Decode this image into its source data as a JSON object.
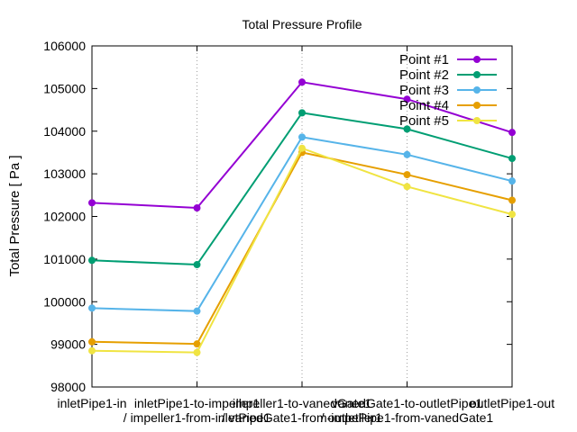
{
  "chart_data": {
    "type": "line",
    "title": "Total Pressure Profile",
    "xlabel": "",
    "ylabel": "Total Pressure [ Pa ]",
    "x_tick_labels": [
      [
        "inletPipe1-in"
      ],
      [
        "inletPipe1-to-impeller1",
        "/ impeller1-from-inletPipe1"
      ],
      [
        "impeller1-to-vanedGate1",
        "/ vanedGate1-from-impeller1"
      ],
      [
        "vanedGate1-to-outletPipe1",
        "/ outletPipe1-from-vanedGate1"
      ],
      [
        "outletPipe1-out"
      ]
    ],
    "ylim": [
      98000,
      106000
    ],
    "y_ticks": [
      98000,
      99000,
      100000,
      101000,
      102000,
      103000,
      104000,
      105000,
      106000
    ],
    "grid": "vertical dotted",
    "legend_position": "top-right",
    "series": [
      {
        "name": "Point #1",
        "color": "#9400d3",
        "values": [
          102320,
          102200,
          105150,
          104750,
          103970
        ]
      },
      {
        "name": "Point #2",
        "color": "#009e73",
        "values": [
          100970,
          100870,
          104430,
          104050,
          103360
        ]
      },
      {
        "name": "Point #3",
        "color": "#56b4e9",
        "values": [
          99850,
          99780,
          103860,
          103450,
          102830
        ]
      },
      {
        "name": "Point #4",
        "color": "#e69f00",
        "values": [
          99060,
          99010,
          103500,
          102980,
          102380
        ]
      },
      {
        "name": "Point #5",
        "color": "#f0e442",
        "values": [
          98850,
          98810,
          103600,
          102700,
          102050
        ]
      }
    ]
  }
}
